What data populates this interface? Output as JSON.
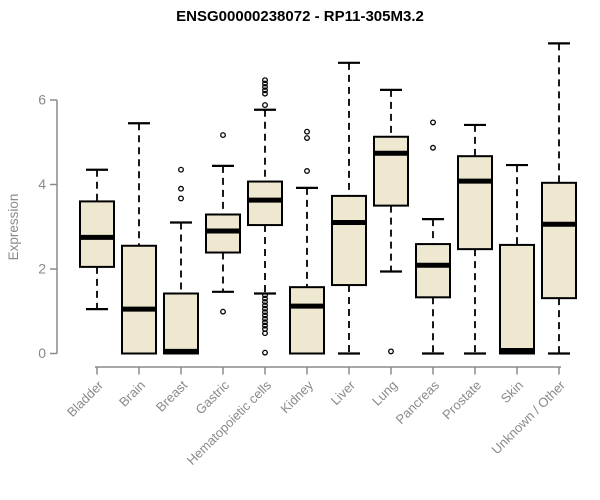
{
  "page_title": "ENSG00000238072 - RP11-305M3.2",
  "chart_data": {
    "type": "boxplot",
    "title": "ENSG00000238072 - RP11-305M3.2",
    "xlabel": "",
    "ylabel": "Expression",
    "ylim": [
      0,
      7.4
    ],
    "ytick_labels_top_to_bottom": [
      "6",
      "4",
      "2",
      "0"
    ],
    "grid": false,
    "legend": "none",
    "colors": {
      "box_fill": "#EEE8D0",
      "box_stroke": "#000000",
      "axis": "#8A8A8A",
      "text": "#8A8A8A",
      "title": "#000000"
    },
    "categories": [
      "Bladder",
      "Brain",
      "Breast",
      "Gastric",
      "Hematopoietic cells",
      "Kidney",
      "Liver",
      "Lung",
      "Pancreas",
      "Prostate",
      "Skin",
      "Unknown / Other"
    ],
    "boxes": [
      {
        "category": "Bladder",
        "whisker_low": 1.05,
        "q1": 2.05,
        "median": 2.75,
        "q3": 3.6,
        "whisker_high": 4.35,
        "outliers": []
      },
      {
        "category": "Brain",
        "whisker_low": 0,
        "q1": 0,
        "median": 1.05,
        "q3": 2.55,
        "whisker_high": 5.45,
        "outliers": []
      },
      {
        "category": "Breast",
        "whisker_low": 0,
        "q1": 0,
        "median": 0.05,
        "q3": 1.42,
        "whisker_high": 3.1,
        "outliers": [
          4.35,
          3.9,
          3.67
        ]
      },
      {
        "category": "Gastric",
        "whisker_low": 1.46,
        "q1": 2.39,
        "median": 2.9,
        "q3": 3.29,
        "whisker_high": 4.44,
        "outliers": [
          5.17,
          0.99
        ]
      },
      {
        "category": "Hematopoietic cells",
        "whisker_low": 1.42,
        "q1": 3.04,
        "median": 3.63,
        "q3": 4.07,
        "whisker_high": 5.77,
        "outliers": [
          6.47,
          6.39,
          6.31,
          6.23,
          6.15,
          5.88,
          1.38,
          1.3,
          1.22,
          1.14,
          1.06,
          0.98,
          0.9,
          0.82,
          0.74,
          0.66,
          0.58,
          0.48,
          0.02
        ]
      },
      {
        "category": "Kidney",
        "whisker_low": 0,
        "q1": 0,
        "median": 1.12,
        "q3": 1.57,
        "whisker_high": 3.92,
        "outliers": [
          5.25,
          5.1,
          4.32
        ]
      },
      {
        "category": "Liver",
        "whisker_low": 0,
        "q1": 1.62,
        "median": 3.1,
        "q3": 3.73,
        "whisker_high": 6.88,
        "outliers": []
      },
      {
        "category": "Lung",
        "whisker_low": 1.94,
        "q1": 3.5,
        "median": 4.74,
        "q3": 5.13,
        "whisker_high": 6.24,
        "outliers": [
          0.05
        ]
      },
      {
        "category": "Pancreas",
        "whisker_low": 0,
        "q1": 1.33,
        "median": 2.09,
        "q3": 2.59,
        "whisker_high": 3.18,
        "outliers": [
          5.47,
          4.87
        ]
      },
      {
        "category": "Prostate",
        "whisker_low": 0,
        "q1": 2.47,
        "median": 4.08,
        "q3": 4.67,
        "whisker_high": 5.41,
        "outliers": []
      },
      {
        "category": "Skin",
        "whisker_low": 0,
        "q1": 0,
        "median": 0.07,
        "q3": 2.57,
        "whisker_high": 4.46,
        "outliers": []
      },
      {
        "category": "Unknown / Other",
        "whisker_low": 0,
        "q1": 1.31,
        "median": 3.06,
        "q3": 4.04,
        "whisker_high": 7.34,
        "outliers": []
      }
    ]
  }
}
